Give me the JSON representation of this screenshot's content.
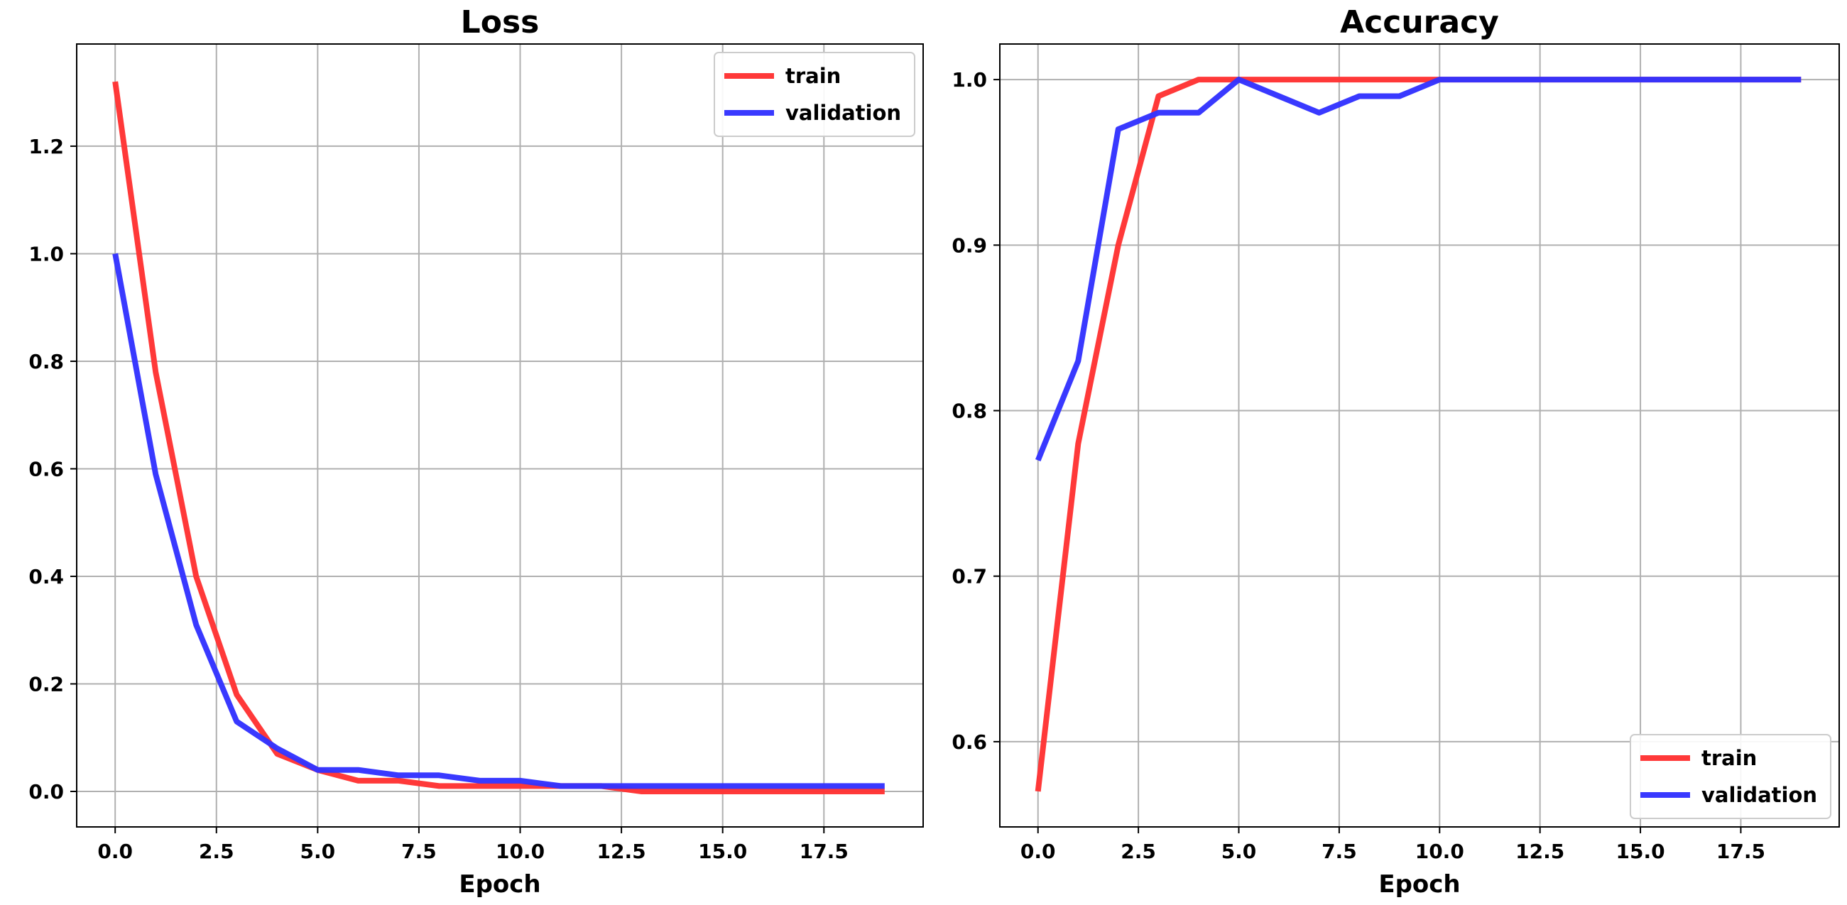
{
  "chart_data": [
    {
      "type": "line",
      "title": "Loss",
      "xlabel": "Epoch",
      "ylabel": "",
      "xlim": [
        -0.95,
        19.95
      ],
      "ylim": [
        -0.066,
        1.39
      ],
      "x_ticks": [
        0.0,
        2.5,
        5.0,
        7.5,
        10.0,
        12.5,
        15.0,
        17.5
      ],
      "x_tick_labels": [
        "0.0",
        "2.5",
        "5.0",
        "7.5",
        "10.0",
        "12.5",
        "15.0",
        "17.5"
      ],
      "y_ticks": [
        0.0,
        0.2,
        0.4,
        0.6,
        0.8,
        1.0,
        1.2
      ],
      "y_tick_labels": [
        "0.0",
        "0.2",
        "0.4",
        "0.6",
        "0.8",
        "1.0",
        "1.2"
      ],
      "grid": true,
      "legend_position": "upper right",
      "x": [
        0,
        1,
        2,
        3,
        4,
        5,
        6,
        7,
        8,
        9,
        10,
        11,
        12,
        13,
        14,
        15,
        16,
        17,
        18,
        19
      ],
      "series": [
        {
          "name": "train",
          "color": "#ff3333",
          "values": [
            1.32,
            0.78,
            0.4,
            0.18,
            0.07,
            0.04,
            0.02,
            0.02,
            0.01,
            0.01,
            0.01,
            0.01,
            0.01,
            0.0,
            0.0,
            0.0,
            0.0,
            0.0,
            0.0,
            0.0
          ]
        },
        {
          "name": "validation",
          "color": "#3333ff",
          "values": [
            1.0,
            0.59,
            0.31,
            0.13,
            0.08,
            0.04,
            0.04,
            0.03,
            0.03,
            0.02,
            0.02,
            0.01,
            0.01,
            0.01,
            0.01,
            0.01,
            0.01,
            0.01,
            0.01,
            0.01
          ]
        }
      ]
    },
    {
      "type": "line",
      "title": "Accuracy",
      "xlabel": "Epoch",
      "ylabel": "",
      "xlim": [
        -0.95,
        19.95
      ],
      "ylim": [
        0.5485,
        1.0215
      ],
      "x_ticks": [
        0.0,
        2.5,
        5.0,
        7.5,
        10.0,
        12.5,
        15.0,
        17.5
      ],
      "x_tick_labels": [
        "0.0",
        "2.5",
        "5.0",
        "7.5",
        "10.0",
        "12.5",
        "15.0",
        "17.5"
      ],
      "y_ticks": [
        0.6,
        0.7,
        0.8,
        0.9,
        1.0
      ],
      "y_tick_labels": [
        "0.6",
        "0.7",
        "0.8",
        "0.9",
        "1.0"
      ],
      "grid": true,
      "legend_position": "lower right",
      "x": [
        0,
        1,
        2,
        3,
        4,
        5,
        6,
        7,
        8,
        9,
        10,
        11,
        12,
        13,
        14,
        15,
        16,
        17,
        18,
        19
      ],
      "series": [
        {
          "name": "train",
          "color": "#ff3333",
          "values": [
            0.57,
            0.78,
            0.9,
            0.99,
            1.0,
            1.0,
            1.0,
            1.0,
            1.0,
            1.0,
            1.0,
            1.0,
            1.0,
            1.0,
            1.0,
            1.0,
            1.0,
            1.0,
            1.0,
            1.0
          ]
        },
        {
          "name": "validation",
          "color": "#3333ff",
          "values": [
            0.77,
            0.83,
            0.97,
            0.98,
            0.98,
            1.0,
            0.99,
            0.98,
            0.99,
            0.99,
            1.0,
            1.0,
            1.0,
            1.0,
            1.0,
            1.0,
            1.0,
            1.0,
            1.0,
            1.0
          ]
        }
      ]
    }
  ]
}
